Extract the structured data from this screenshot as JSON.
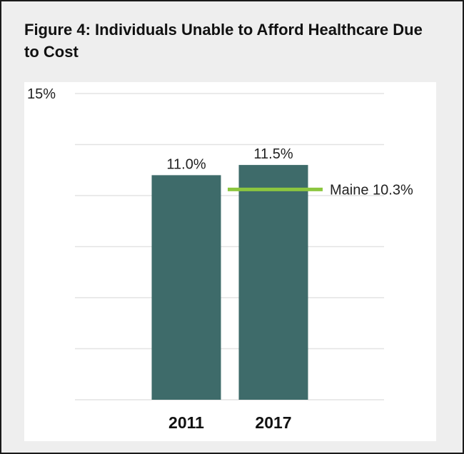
{
  "chart_data": {
    "type": "bar",
    "title": "Figure 4: Individuals Unable to Afford Healthcare Due to Cost",
    "categories": [
      "2011",
      "2017"
    ],
    "values": [
      11.0,
      11.5
    ],
    "data_labels": [
      "11.0%",
      "11.5%"
    ],
    "ylim": [
      0,
      15
    ],
    "y_tick_labels": [
      {
        "value": 15,
        "label": "15%"
      }
    ],
    "gridlines": [
      0,
      2.5,
      5,
      7.5,
      10,
      12.5,
      15
    ],
    "grid": true,
    "reference_line": {
      "label": "Maine 10.3%",
      "value": 10.3
    },
    "colors": {
      "bar": "#3e6b6a",
      "reference": "#8cc63f",
      "grid": "#e3e3e3"
    }
  }
}
